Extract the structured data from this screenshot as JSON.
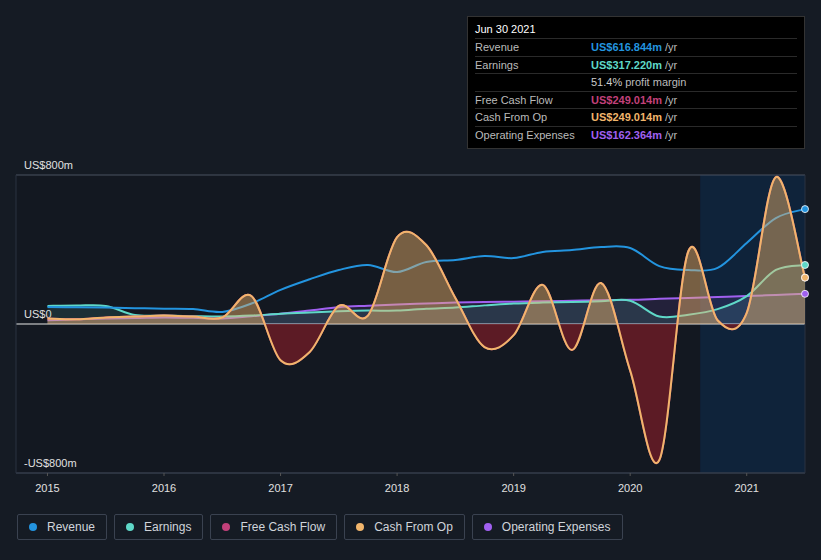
{
  "chart_data": {
    "type": "line",
    "x": [
      2015,
      2015.25,
      2015.5,
      2015.75,
      2016,
      2016.25,
      2016.5,
      2016.75,
      2017,
      2017.25,
      2017.5,
      2017.75,
      2018,
      2018.25,
      2018.5,
      2018.75,
      2019,
      2019.25,
      2019.5,
      2019.75,
      2020,
      2020.25,
      2020.5,
      2020.75,
      2021,
      2021.25,
      2021.5
    ],
    "series": [
      {
        "name": "Revenue",
        "color": "#2394df",
        "values": [
          91,
          90,
          88,
          85,
          82,
          80,
          65,
          110,
          183,
          240,
          290,
          317,
          279,
          333,
          344,
          365,
          354,
          387,
          397,
          413,
          408,
          311,
          290,
          301,
          435,
          569,
          617
        ]
      },
      {
        "name": "Earnings",
        "color": "#5fd8c8",
        "values": [
          97,
          99,
          97,
          48,
          45,
          42,
          40,
          45,
          55,
          62,
          68,
          72,
          72,
          82,
          88,
          100,
          110,
          115,
          118,
          122,
          125,
          40,
          50,
          80,
          150,
          290,
          317
        ]
      },
      {
        "name": "Free Cash Flow",
        "color": "#c2407a",
        "values": [
          30,
          25,
          35,
          40,
          45,
          40,
          35,
          150,
          -195,
          -150,
          97,
          45,
          467,
          424,
          140,
          -124,
          -60,
          210,
          -140,
          220,
          -250,
          -730,
          392,
          20,
          60,
          789,
          249
        ]
      },
      {
        "name": "Cash From Op",
        "color": "#f1b56c",
        "values": [
          30,
          25,
          35,
          40,
          45,
          40,
          35,
          150,
          -195,
          -150,
          97,
          45,
          467,
          424,
          140,
          -124,
          -60,
          210,
          -140,
          220,
          -250,
          -730,
          392,
          20,
          60,
          789,
          249
        ]
      },
      {
        "name": "Operating Expenses",
        "color": "#a060f0",
        "values": [
          20,
          25,
          30,
          32,
          35,
          33,
          30,
          42,
          55,
          72,
          90,
          98,
          105,
          110,
          115,
          118,
          120,
          122,
          125,
          128,
          130,
          135,
          140,
          145,
          150,
          156,
          162
        ]
      }
    ],
    "xlim": [
      2014.73,
      2021.5
    ],
    "xticks": [
      2015,
      2016,
      2017,
      2018,
      2019,
      2020,
      2021
    ],
    "ylim": [
      -800,
      800
    ],
    "yticks": [
      {
        "value": -800,
        "label": "-US$800m"
      },
      {
        "value": 0,
        "label": "US$0"
      },
      {
        "value": 800,
        "label": "US$800m"
      }
    ],
    "grid": true,
    "legend": "bottom",
    "tooltip": {
      "title": "Jun 30 2021",
      "rows": [
        {
          "label": "Revenue",
          "value": "US$616.844m",
          "unit": "/yr"
        },
        {
          "label": "Earnings",
          "value": "US$317.220m",
          "unit": "/yr"
        },
        {
          "label": "",
          "value": "51.4%",
          "unit": "profit margin"
        },
        {
          "label": "Free Cash Flow",
          "value": "US$249.014m",
          "unit": "/yr"
        },
        {
          "label": "Cash From Op",
          "value": "US$249.014m",
          "unit": "/yr"
        },
        {
          "label": "Operating Expenses",
          "value": "US$162.364m",
          "unit": "/yr"
        }
      ]
    }
  }
}
